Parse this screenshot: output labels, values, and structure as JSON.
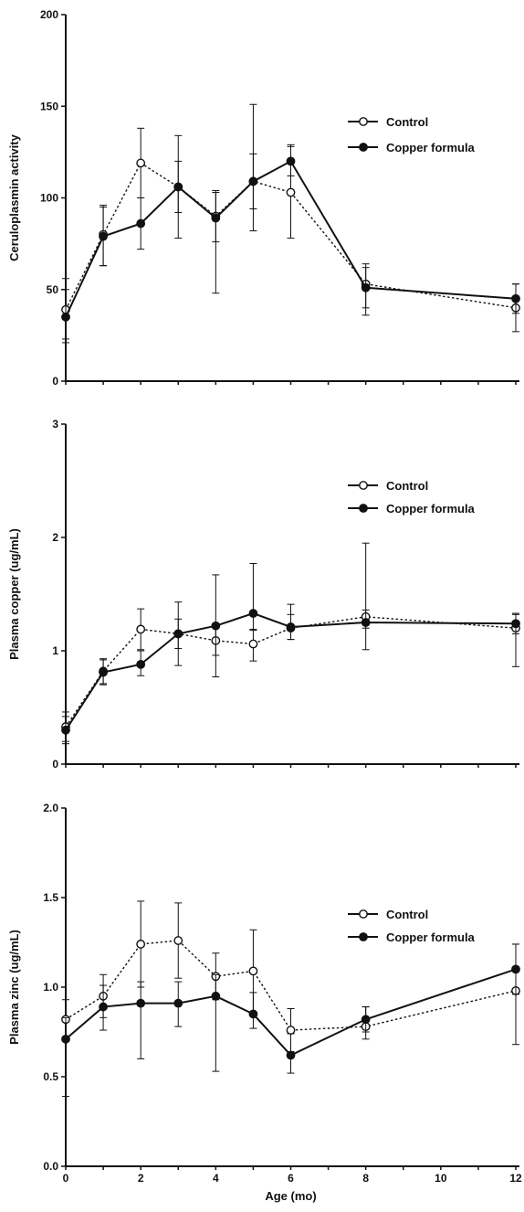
{
  "chart_data": [
    {
      "type": "line",
      "ylabel": "Ceruloplasmin activity",
      "xlabel": "",
      "ylim": [
        0,
        200
      ],
      "yticks": [
        "0",
        "50",
        "100",
        "150",
        "200"
      ],
      "x": [
        0,
        1,
        2,
        3,
        4,
        5,
        6,
        8,
        12
      ],
      "xticks": [],
      "legend": "right",
      "series": [
        {
          "name": "Control",
          "marker": "open-circle",
          "line": "dotted",
          "values": [
            39,
            80,
            119,
            106,
            90,
            109,
            103,
            53,
            40
          ],
          "err_upper": [
            56,
            96,
            138,
            134,
            104,
            151,
            129,
            64,
            53
          ],
          "err_lower": [
            23,
            63,
            100,
            78,
            76,
            82,
            78,
            36,
            27
          ]
        },
        {
          "name": "Copper formula",
          "marker": "filled-circle",
          "line": "solid",
          "values": [
            35,
            79,
            86,
            106,
            89,
            109,
            120,
            51,
            45
          ],
          "err_upper": [
            50,
            95,
            100,
            120,
            103,
            124,
            128,
            62,
            53
          ],
          "err_lower": [
            21,
            63,
            72,
            92,
            48,
            94,
            112,
            40,
            37
          ]
        }
      ]
    },
    {
      "type": "line",
      "ylabel": "Plasma copper (ug/mL)",
      "xlabel": "",
      "ylim": [
        0,
        3
      ],
      "yticks": [
        "0",
        "1",
        "2",
        "3"
      ],
      "x": [
        0,
        1,
        2,
        3,
        4,
        5,
        6,
        8,
        12
      ],
      "xticks": [],
      "legend": "right",
      "series": [
        {
          "name": "Control",
          "marker": "open-circle",
          "line": "dotted",
          "values": [
            0.33,
            0.82,
            1.19,
            1.15,
            1.09,
            1.06,
            1.2,
            1.3,
            1.2
          ],
          "err_upper": [
            0.46,
            0.93,
            1.37,
            1.28,
            1.22,
            1.19,
            1.41,
            1.95,
            1.32
          ],
          "err_lower": [
            0.2,
            0.71,
            1.01,
            1.02,
            0.96,
            0.91,
            1.1,
            1.2,
            0.86
          ]
        },
        {
          "name": "Copper formula",
          "marker": "filled-circle",
          "line": "solid",
          "values": [
            0.3,
            0.81,
            0.88,
            1.15,
            1.22,
            1.33,
            1.21,
            1.25,
            1.24
          ],
          "err_upper": [
            0.42,
            0.92,
            1.0,
            1.43,
            1.67,
            1.77,
            1.32,
            1.36,
            1.33
          ],
          "err_lower": [
            0.18,
            0.7,
            0.78,
            0.87,
            0.77,
            1.18,
            1.1,
            1.01,
            1.15
          ]
        }
      ]
    },
    {
      "type": "line",
      "ylabel": "Plasma zinc (ug/mL)",
      "xlabel": "Age (mo)",
      "ylim": [
        0,
        2
      ],
      "yticks": [
        "0.0",
        "0.5",
        "1.0",
        "1.5",
        "2.0"
      ],
      "x": [
        0,
        1,
        2,
        3,
        4,
        5,
        6,
        8,
        12
      ],
      "xticks": [
        "0",
        "2",
        "4",
        "6",
        "8",
        "10",
        "12"
      ],
      "legend": "right",
      "series": [
        {
          "name": "Control",
          "marker": "open-circle",
          "line": "dotted",
          "values": [
            0.82,
            0.95,
            1.24,
            1.26,
            1.06,
            1.09,
            0.76,
            0.78,
            0.98
          ],
          "err_upper": [
            0.93,
            1.07,
            1.48,
            1.47,
            1.19,
            1.32,
            0.88,
            0.89,
            1.24
          ],
          "err_lower": [
            0.71,
            0.83,
            1.0,
            1.05,
            0.93,
            0.86,
            0.64,
            0.71,
            0.68
          ]
        },
        {
          "name": "Copper formula",
          "marker": "filled-circle",
          "line": "solid",
          "values": [
            0.71,
            0.89,
            0.91,
            0.91,
            0.95,
            0.85,
            0.62,
            0.82,
            1.1
          ],
          "err_upper": [
            0.83,
            1.01,
            1.03,
            1.03,
            1.07,
            0.97,
            0.74,
            0.89,
            1.24
          ],
          "err_lower": [
            0.39,
            0.76,
            0.6,
            0.78,
            0.53,
            0.77,
            0.52,
            0.75,
            0.96
          ]
        }
      ]
    }
  ]
}
